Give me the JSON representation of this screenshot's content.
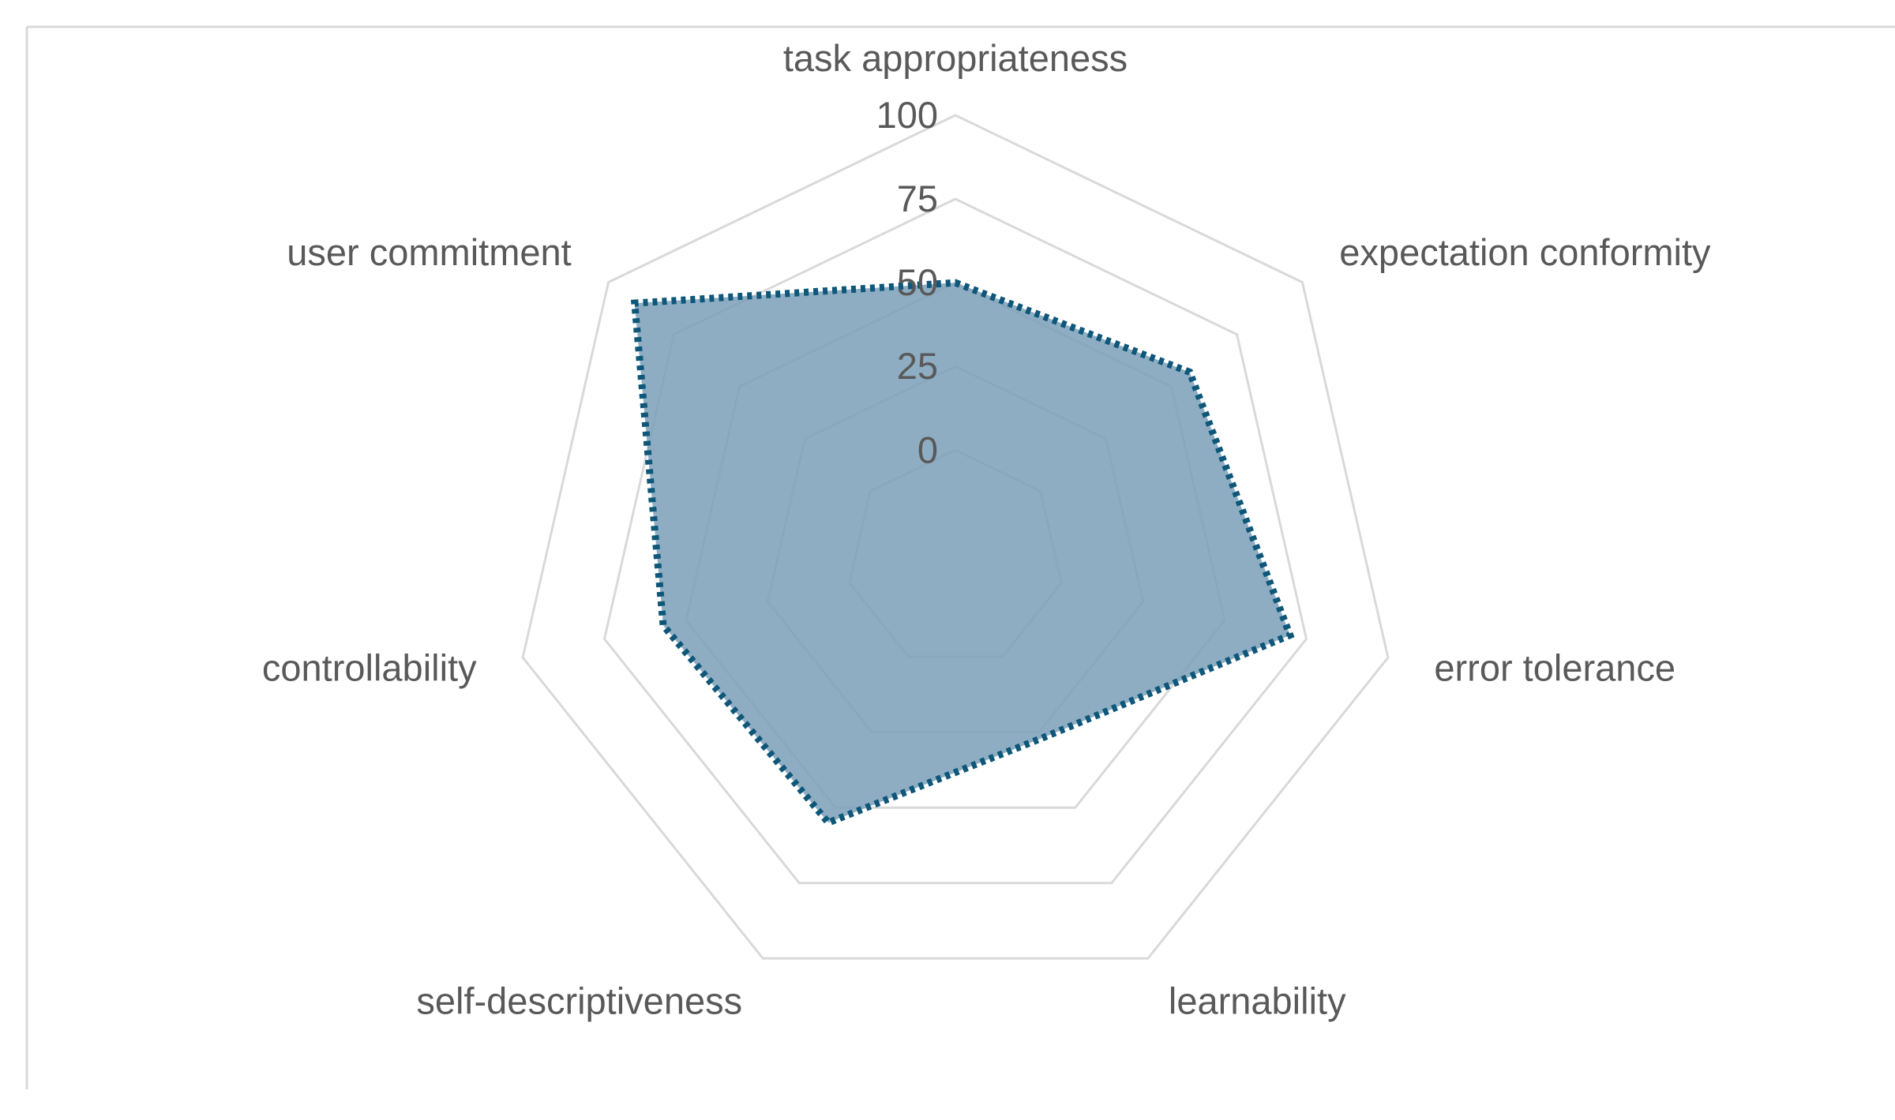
{
  "chart_data": {
    "type": "radar",
    "axes": [
      "task appropriateness",
      "expectation conformity",
      "error tolerance",
      "learnability",
      "self-descriptiveness",
      "controllability",
      "user commitment"
    ],
    "series": [
      {
        "values": [
          50,
          57,
          70,
          27,
          55,
          57,
          90
        ]
      }
    ],
    "rlim": [
      0,
      100
    ],
    "ticks": [
      "0",
      "25",
      "50",
      "75",
      "100"
    ],
    "tick_values": [
      0,
      25,
      50,
      75,
      100
    ],
    "grid": true,
    "legend": "none",
    "colors": {
      "fill": "#7a9fb8",
      "line": "#0e5778",
      "grid": "#d9d9d9",
      "text": "#595959",
      "frame": "#d9d9d9"
    }
  }
}
